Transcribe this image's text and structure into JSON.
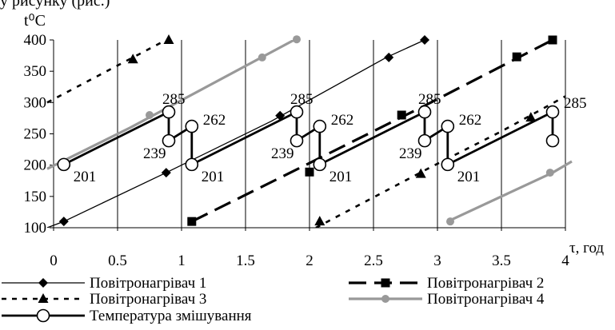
{
  "header_fragment": "у рисунку (рис.)",
  "chart_data": {
    "type": "line",
    "title": "",
    "xlabel": "τ, год",
    "ylabel": "t⁰C",
    "xlim": [
      0,
      4
    ],
    "ylim": [
      100,
      400
    ],
    "x_ticks": [
      0,
      0.5,
      1,
      1.5,
      2,
      2.5,
      3,
      3.5,
      4
    ],
    "x_tick_labels": [
      "0",
      "0.5",
      "1",
      "1.5",
      "2",
      "2.5",
      "3",
      "3.5",
      "4"
    ],
    "y_ticks": [
      100,
      150,
      200,
      250,
      300,
      350,
      400
    ],
    "y_tick_labels": [
      "100",
      "150",
      "200",
      "250",
      "300",
      "350",
      "400"
    ],
    "grid": {
      "x": true,
      "y": false
    },
    "legend_placement": "bottom",
    "series": [
      {
        "name": "Повітронагрівач 1",
        "color": "#000000",
        "style": "thin-solid",
        "marker": "diamond",
        "segments": [
          [
            [
              -0.05,
              100
            ],
            [
              0.08,
              110
            ],
            [
              0.88,
              188
            ],
            [
              1.7,
              270
            ],
            [
              2.6,
              372
            ],
            [
              2.9,
              400
            ]
          ]
        ],
        "markers": [
          [
            0.08,
            110
          ],
          [
            0.88,
            188
          ],
          [
            1.77,
            279
          ],
          [
            2.62,
            372
          ],
          [
            2.9,
            400
          ]
        ]
      },
      {
        "name": "Повітронагрівач 2",
        "color": "#000000",
        "style": "long-dash",
        "marker": "square",
        "segments": [
          [
            [
              1.08,
              110
            ],
            [
              1.15,
              117
            ],
            [
              1.85,
              188
            ],
            [
              2.9,
              295
            ],
            [
              3.9,
              400
            ]
          ]
        ],
        "markers": [
          [
            1.08,
            110
          ],
          [
            2.0,
            189
          ],
          [
            2.72,
            280
          ],
          [
            3.62,
            373
          ],
          [
            3.9,
            400
          ]
        ]
      },
      {
        "name": "Повітронагрівач 3",
        "color": "#000000",
        "style": "dotted",
        "marker": "triangle",
        "segments": [
          [
            [
              -0.05,
              300
            ],
            [
              0.88,
              400
            ]
          ],
          [
            [
              2.05,
              100
            ],
            [
              2.95,
              197
            ],
            [
              3.5,
              254
            ],
            [
              4.0,
              310
            ]
          ]
        ],
        "markers": [
          [
            0.62,
            369
          ],
          [
            0.9,
            400
          ],
          [
            2.08,
            110
          ],
          [
            2.87,
            186
          ],
          [
            3.73,
            276
          ]
        ]
      },
      {
        "name": "Повітронагрівач 4",
        "color": "#999999",
        "style": "gray-solid",
        "marker": "circle-filled",
        "segments": [
          [
            [
              -0.05,
              194
            ],
            [
              0.6,
              260
            ],
            [
              1.88,
              400
            ]
          ],
          [
            [
              3.08,
              110
            ],
            [
              3.9,
              188
            ],
            [
              4.05,
              206
            ]
          ]
        ],
        "markers": [
          [
            0.75,
            280
          ],
          [
            1.63,
            372
          ],
          [
            1.9,
            401
          ],
          [
            3.1,
            110
          ],
          [
            3.88,
            188
          ]
        ]
      },
      {
        "name": "Температура змішування",
        "color": "#000000",
        "style": "thick-solid",
        "marker": "circle-open",
        "segments": [
          [
            [
              0.08,
              201
            ],
            [
              0.9,
              285
            ],
            [
              0.9,
              239
            ],
            [
              1.08,
              262
            ],
            [
              1.08,
              201
            ],
            [
              1.9,
              285
            ],
            [
              1.9,
              239
            ],
            [
              2.08,
              262
            ],
            [
              2.08,
              201
            ],
            [
              2.9,
              285
            ],
            [
              2.9,
              239
            ],
            [
              3.08,
              262
            ],
            [
              3.08,
              201
            ],
            [
              3.9,
              285
            ],
            [
              3.9,
              239
            ]
          ]
        ],
        "markers": [
          [
            0.08,
            201
          ],
          [
            0.9,
            285
          ],
          [
            0.9,
            239
          ],
          [
            1.08,
            262
          ],
          [
            1.08,
            201
          ],
          [
            1.9,
            285
          ],
          [
            1.9,
            239
          ],
          [
            2.08,
            262
          ],
          [
            2.08,
            201
          ],
          [
            2.9,
            285
          ],
          [
            2.9,
            239
          ],
          [
            3.08,
            262
          ],
          [
            3.08,
            201
          ],
          [
            3.9,
            285
          ],
          [
            3.9,
            239
          ]
        ]
      }
    ],
    "annotations": [
      {
        "text": "201",
        "x": 0.08,
        "y": 201
      },
      {
        "text": "285",
        "x": 0.9,
        "y": 285
      },
      {
        "text": "239",
        "x": 0.9,
        "y": 239
      },
      {
        "text": "262",
        "x": 1.08,
        "y": 262
      },
      {
        "text": "201",
        "x": 1.08,
        "y": 201
      },
      {
        "text": "285",
        "x": 1.9,
        "y": 285
      },
      {
        "text": "239",
        "x": 1.9,
        "y": 239
      },
      {
        "text": "262",
        "x": 2.08,
        "y": 262
      },
      {
        "text": "201",
        "x": 2.08,
        "y": 201
      },
      {
        "text": "285",
        "x": 2.9,
        "y": 285
      },
      {
        "text": "239",
        "x": 2.9,
        "y": 239
      },
      {
        "text": "262",
        "x": 3.08,
        "y": 262
      },
      {
        "text": "201",
        "x": 3.08,
        "y": 201
      },
      {
        "text": "285",
        "x": 3.9,
        "y": 285
      }
    ]
  }
}
